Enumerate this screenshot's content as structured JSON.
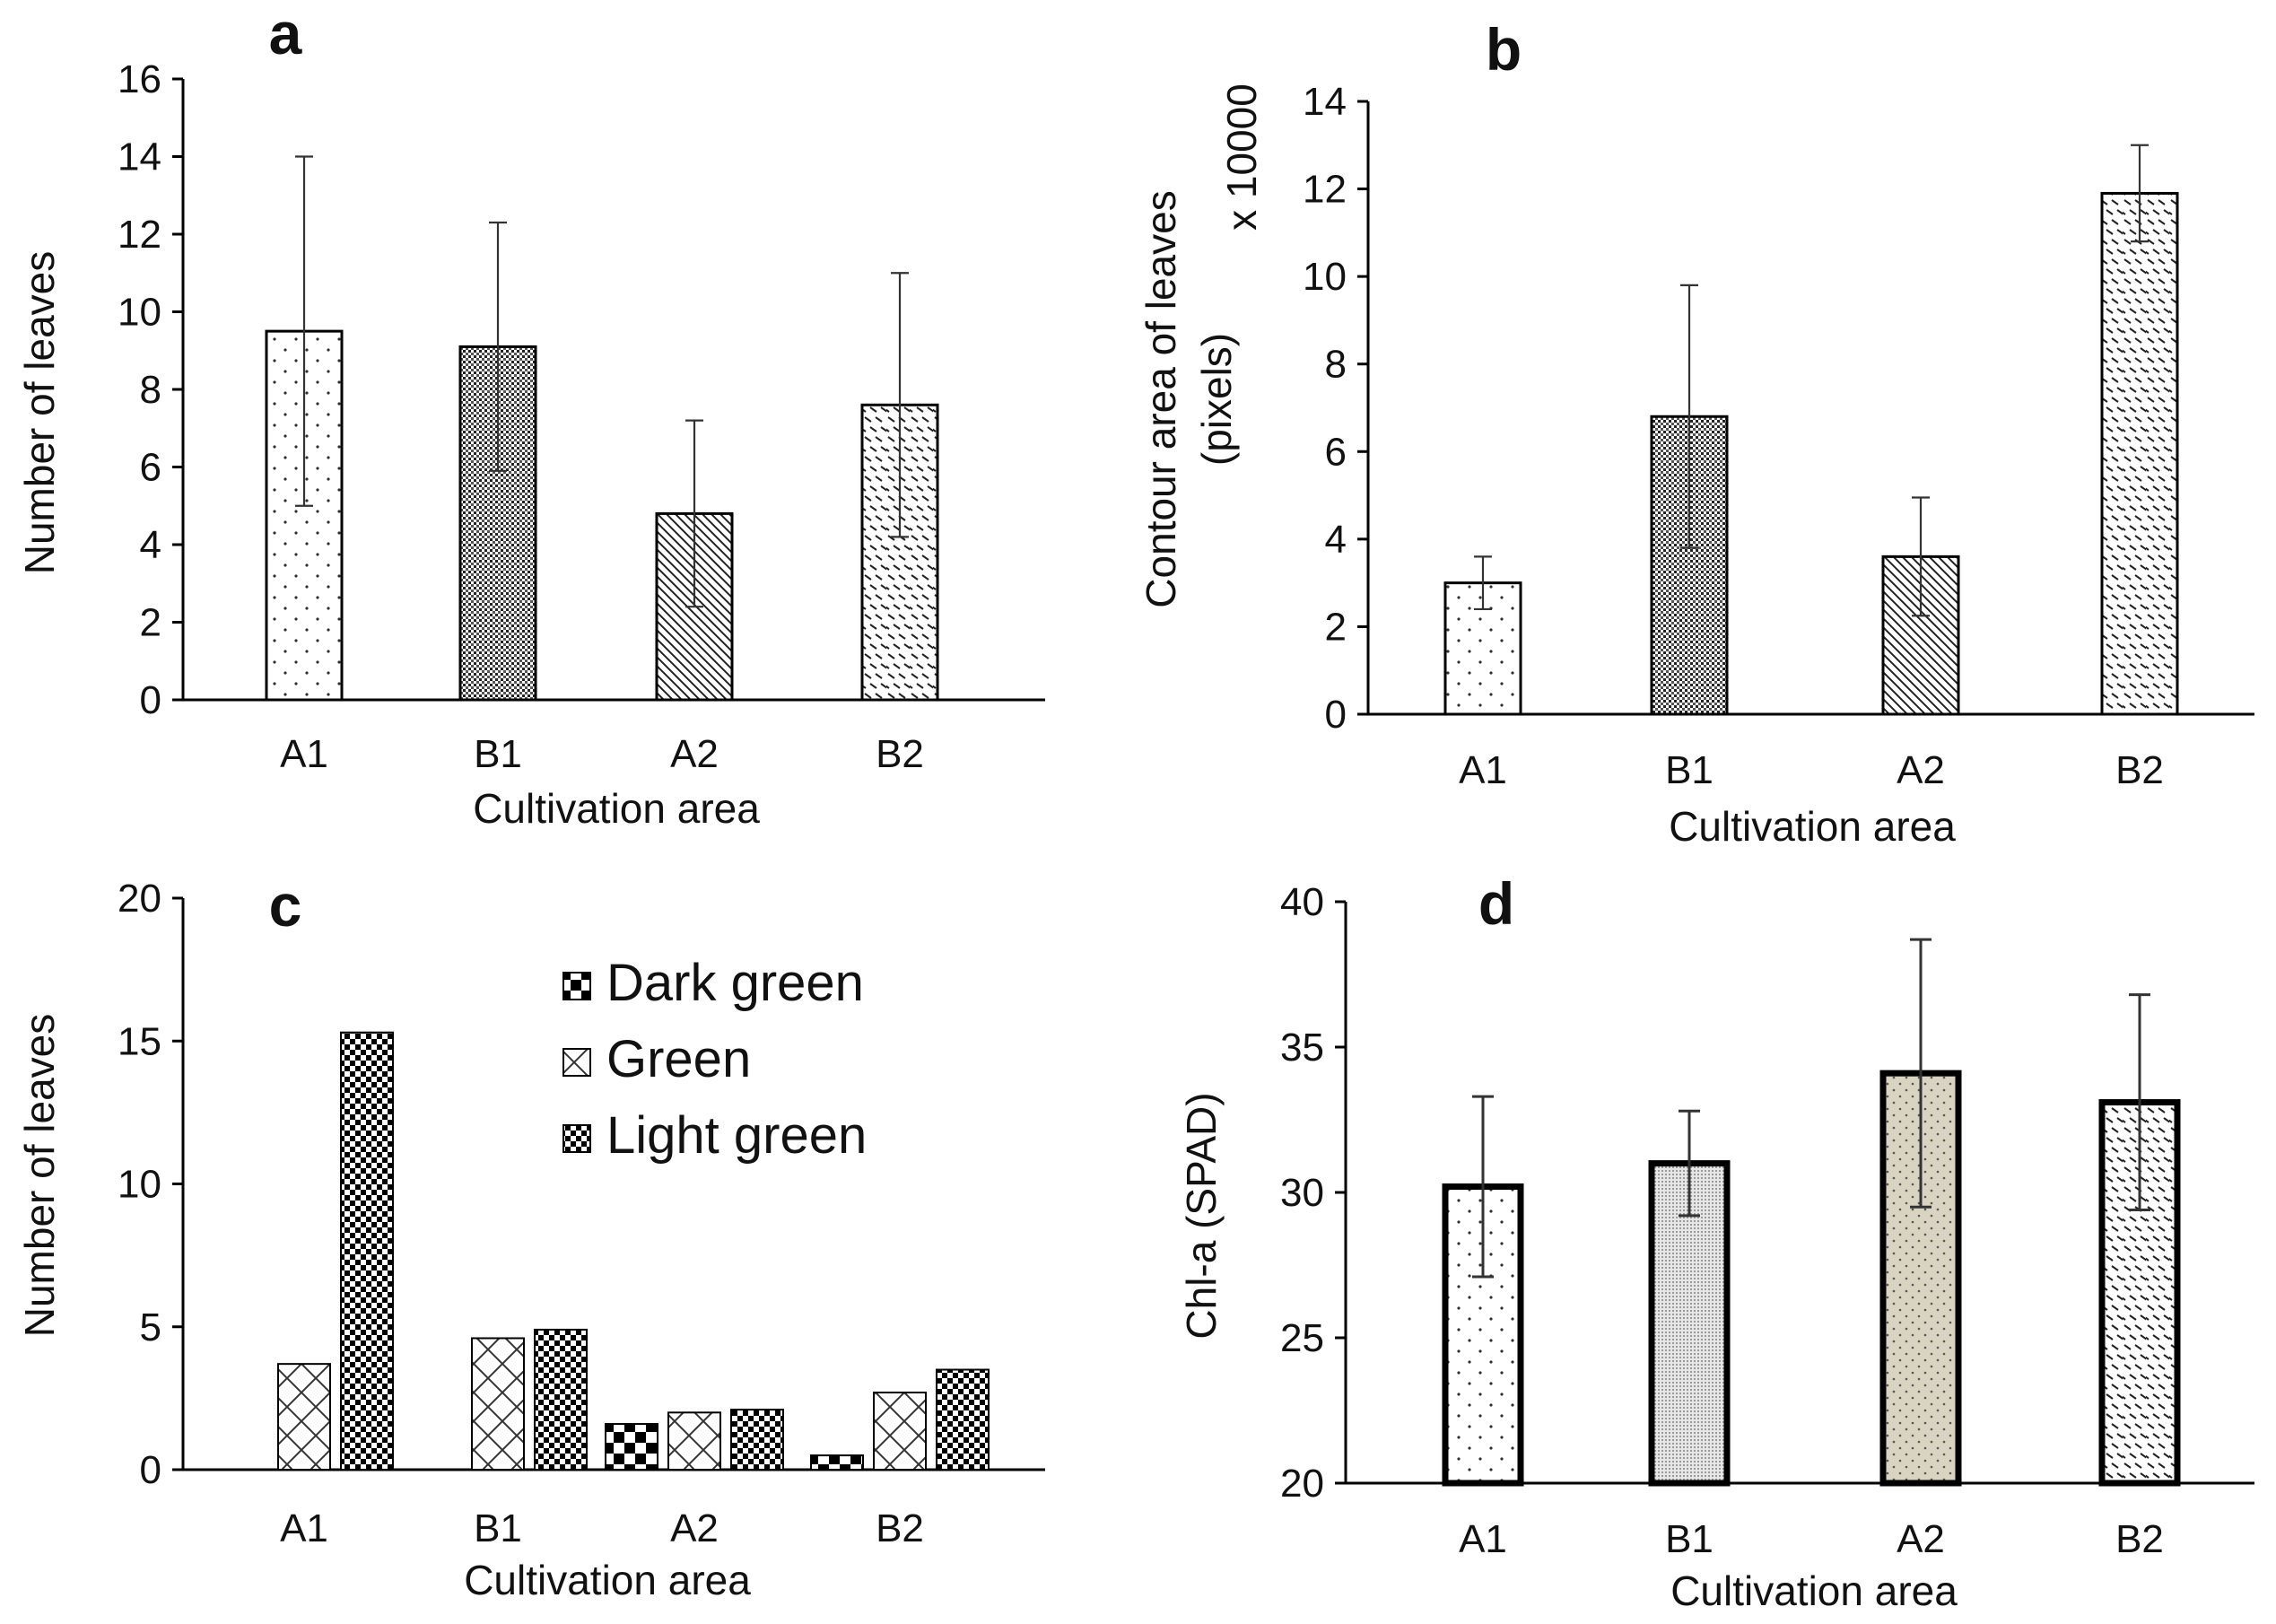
{
  "chart_data": [
    {
      "id": "a",
      "type": "bar",
      "panel_label": "a",
      "categories": [
        "A1",
        "B1",
        "A2",
        "B2"
      ],
      "values": [
        9.5,
        9.1,
        4.8,
        7.6
      ],
      "errors": [
        4.5,
        3.2,
        2.4,
        3.4
      ],
      "patterns": [
        "dots",
        "grid",
        "diag",
        "wave"
      ],
      "xlabel": "Cultivation area",
      "ylabel": "Number of leaves",
      "ylim": [
        0,
        16
      ],
      "yticks": [
        0,
        2,
        4,
        6,
        8,
        10,
        12,
        14,
        16
      ]
    },
    {
      "id": "b",
      "type": "bar",
      "panel_label": "b",
      "categories": [
        "A1",
        "B1",
        "A2",
        "B2"
      ],
      "values": [
        3.0,
        6.8,
        3.6,
        11.9
      ],
      "errors": [
        0.6,
        3.0,
        1.35,
        1.1
      ],
      "patterns": [
        "dots",
        "grid",
        "diag",
        "wave"
      ],
      "xlabel": "Cultivation area",
      "ylabel": "Contour area of leaves",
      "ylabel2": "(pixels)",
      "yunit": "x 10000",
      "ylim": [
        0,
        14
      ],
      "yticks": [
        0,
        2,
        4,
        6,
        8,
        10,
        12,
        14
      ]
    },
    {
      "id": "c",
      "type": "bar",
      "panel_label": "c",
      "categories": [
        "A1",
        "B1",
        "A2",
        "B2"
      ],
      "series": [
        {
          "name": "Dark green",
          "values": [
            0,
            0,
            1.6,
            0.5
          ],
          "pattern": "checker"
        },
        {
          "name": "Green",
          "values": [
            3.7,
            4.6,
            2.0,
            2.7
          ],
          "pattern": "lattice"
        },
        {
          "name": "Light green",
          "values": [
            15.3,
            4.9,
            2.1,
            3.5
          ],
          "pattern": "checkfine"
        }
      ],
      "xlabel": "Cultivation area",
      "ylabel": "Number of leaves",
      "ylim": [
        0,
        20
      ],
      "yticks": [
        0,
        5,
        10,
        15,
        20
      ]
    },
    {
      "id": "d",
      "type": "bar",
      "panel_label": "d",
      "categories": [
        "A1",
        "B1",
        "A2",
        "B2"
      ],
      "values": [
        30.2,
        31.0,
        34.1,
        33.1
      ],
      "errors": [
        3.1,
        1.8,
        4.6,
        3.7
      ],
      "patterns": [
        "dots",
        "grayfine",
        "beige",
        "wave"
      ],
      "xlabel": "Cultivation area",
      "ylabel": "Chl-a  (SPAD)",
      "ylim": [
        20,
        40
      ],
      "yticks": [
        20,
        25,
        30,
        35,
        40
      ]
    }
  ],
  "colors": {
    "axis": "#000000",
    "bar_fill": "#ffffff",
    "beige": "#d8d4c1",
    "gray": "#cfcfcf"
  }
}
